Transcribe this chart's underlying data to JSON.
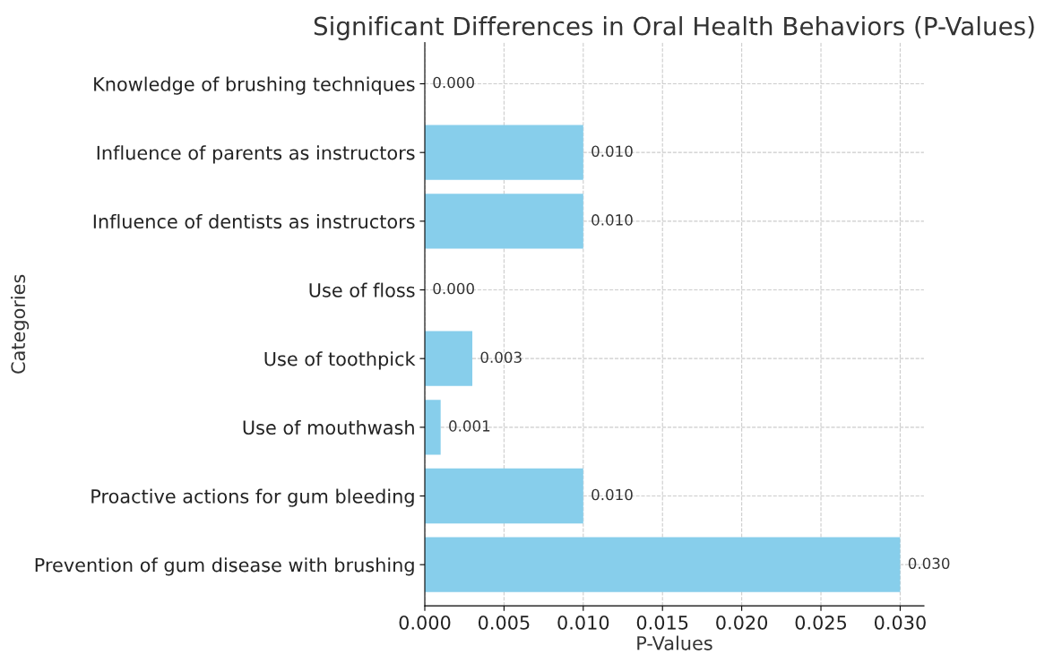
{
  "chart_data": {
    "type": "bar",
    "orientation": "horizontal",
    "title": "Significant Differences in Oral Health Behaviors (P-Values)",
    "xlabel": "P-Values",
    "ylabel": "Categories",
    "categories": [
      "Knowledge of brushing techniques",
      "Influence of parents as instructors",
      "Influence of dentists as instructors",
      "Use of floss",
      "Use of toothpick",
      "Use of mouthwash",
      "Proactive actions for gum bleeding",
      "Prevention of gum disease with brushing"
    ],
    "values": [
      0.0,
      0.01,
      0.01,
      0.0,
      0.003,
      0.001,
      0.01,
      0.03
    ],
    "value_labels": [
      "0.000",
      "0.010",
      "0.010",
      "0.000",
      "0.003",
      "0.001",
      "0.010",
      "0.030"
    ],
    "color": "#87ceeb",
    "xlim": [
      0,
      0.0315
    ],
    "xticks": [
      {
        "value": 0,
        "label": "0.000"
      },
      {
        "value": 0.005,
        "label": "0.005"
      },
      {
        "value": 0.01,
        "label": "0.010"
      },
      {
        "value": 0.015,
        "label": "0.015"
      },
      {
        "value": 0.02,
        "label": "0.020"
      },
      {
        "value": 0.025,
        "label": "0.025"
      },
      {
        "value": 0.03,
        "label": "0.030"
      }
    ],
    "grid": true
  }
}
